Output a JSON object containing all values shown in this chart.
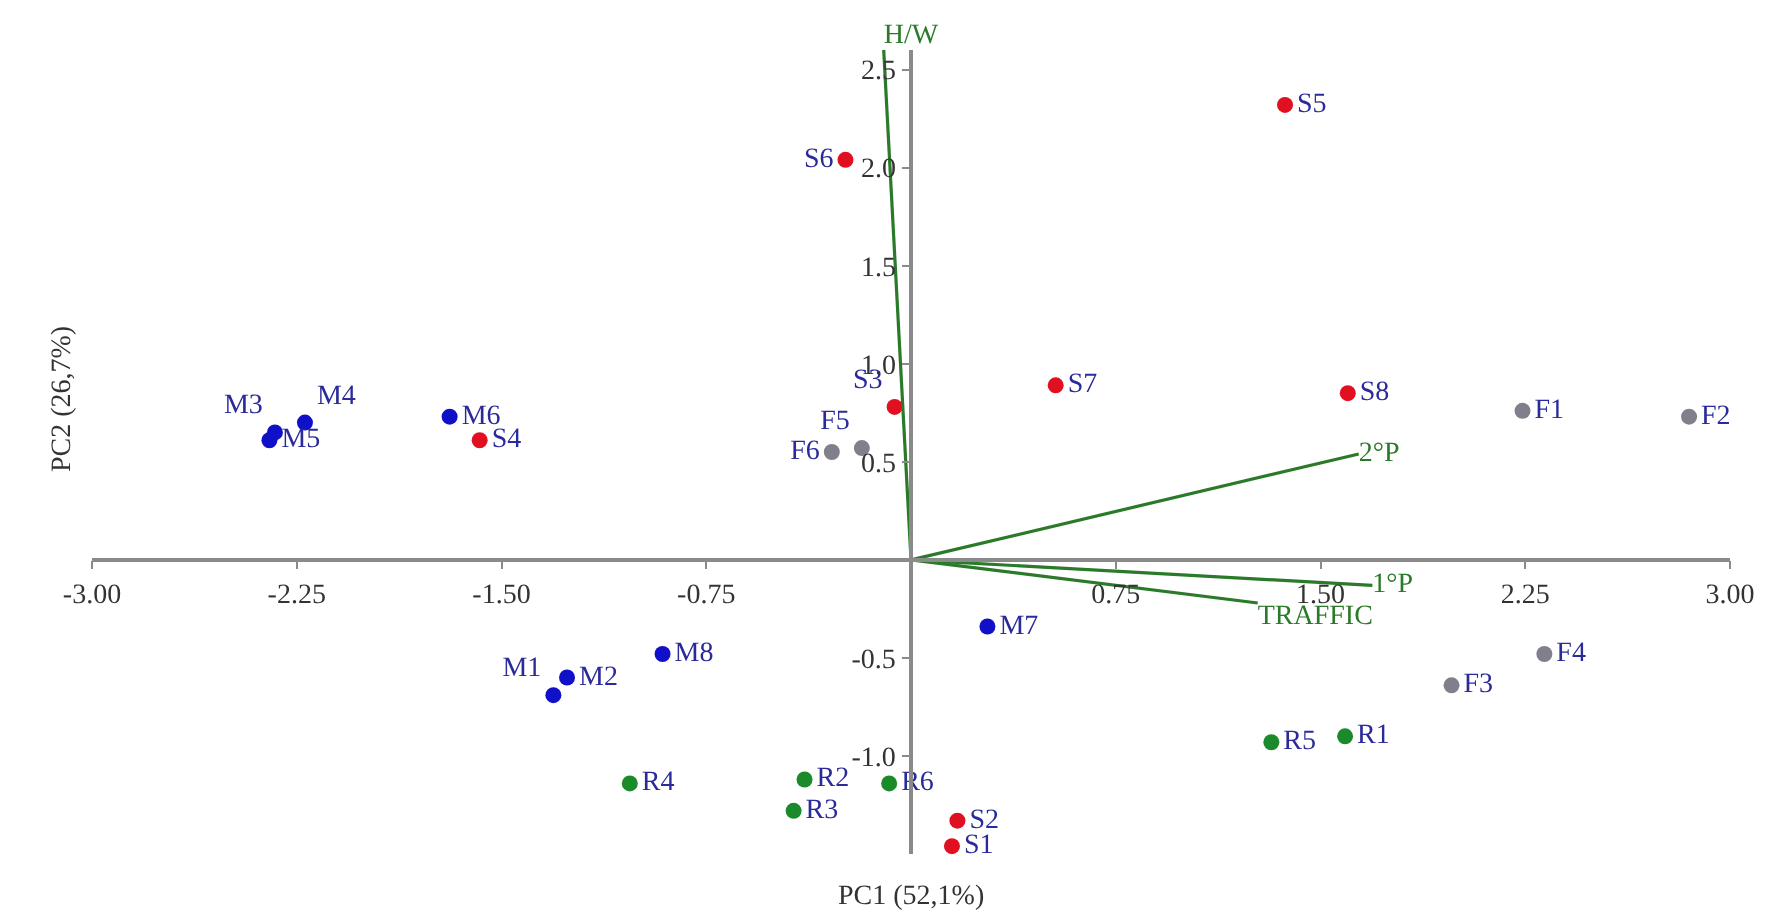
{
  "chart_data": {
    "type": "scatter",
    "xlabel": "PC1 (52,1%)",
    "ylabel": "PC2 (26,7%)",
    "xlim": [
      -3,
      3
    ],
    "ylim": [
      -1.5,
      2.6
    ],
    "xticks": [
      {
        "value": -3,
        "label": "-3.00"
      },
      {
        "value": -2.25,
        "label": "-2.25"
      },
      {
        "value": -1.5,
        "label": "-1.50"
      },
      {
        "value": -0.75,
        "label": "-0.75"
      },
      {
        "value": 0.75,
        "label": "0.75"
      },
      {
        "value": 1.5,
        "label": "1.50"
      },
      {
        "value": 2.25,
        "label": "2.25"
      },
      {
        "value": 3,
        "label": "3.00"
      }
    ],
    "yticks": [
      {
        "value": -1,
        "label": "-1.0"
      },
      -0.5,
      0.5,
      {
        "value": 1,
        "label": "1.0"
      },
      1.5,
      {
        "value": 2,
        "label": "2.0"
      },
      2.5
    ],
    "marker": "circle",
    "series": [
      {
        "color": "#1010c8",
        "x": [
          -1.31,
          -1.26,
          -2.33,
          -2.22,
          -2.35,
          -1.69,
          0.28,
          -0.91
        ],
        "values": [
          -0.69,
          -0.6,
          0.65,
          0.7,
          0.61,
          0.73,
          -0.34,
          -0.48
        ],
        "value_labels": [
          "M1",
          "M2",
          "M3",
          "M4",
          "M5",
          "M6",
          "M7",
          "M8"
        ]
      },
      {
        "color": "#e01020",
        "x": [
          0.15,
          0.17,
          -0.06,
          -1.58,
          1.37,
          -0.24,
          0.53,
          1.6
        ],
        "values": [
          -1.46,
          -1.33,
          0.78,
          0.61,
          2.32,
          2.04,
          0.89,
          0.85
        ],
        "value_labels": [
          "S1",
          "S2",
          "S3",
          "S4",
          "S5",
          "S6",
          "S7",
          "S8"
        ]
      },
      {
        "color": "#80808c",
        "x": [
          2.24,
          2.85,
          1.98,
          2.32,
          -0.18,
          -0.29
        ],
        "values": [
          0.76,
          0.73,
          -0.64,
          -0.48,
          0.57,
          0.55
        ],
        "value_labels": [
          "F1",
          "F2",
          "F3",
          "F4",
          "F5",
          "F6"
        ]
      },
      {
        "color": "#1a8a2a",
        "x": [
          1.59,
          -0.39,
          -0.43,
          -1.03,
          1.32,
          -0.08
        ],
        "values": [
          -0.9,
          -1.12,
          -1.28,
          -1.14,
          -0.93,
          -1.14
        ],
        "value_labels": [
          "R1",
          "R2",
          "R3",
          "R4",
          "R5",
          "R6"
        ]
      },
      {
        "type": "line",
        "marker": "none",
        "name": "H/W",
        "color": "#2a7a2a",
        "x": [
          0,
          -0.1
        ],
        "values": [
          0,
          2.6
        ]
      },
      {
        "type": "line",
        "marker": "none",
        "name": "2°P",
        "color": "#2a7a2a",
        "x": [
          0,
          1.64
        ],
        "values": [
          0,
          0.54
        ]
      },
      {
        "type": "line",
        "marker": "none",
        "name": "1°P",
        "color": "#2a7a2a",
        "x": [
          0,
          1.69
        ],
        "values": [
          0,
          -0.13
        ]
      },
      {
        "type": "line",
        "marker": "none",
        "name": "TRAFFIC",
        "color": "#2a7a2a",
        "x": [
          0,
          1.27
        ],
        "values": [
          0,
          -0.22
        ]
      }
    ]
  }
}
